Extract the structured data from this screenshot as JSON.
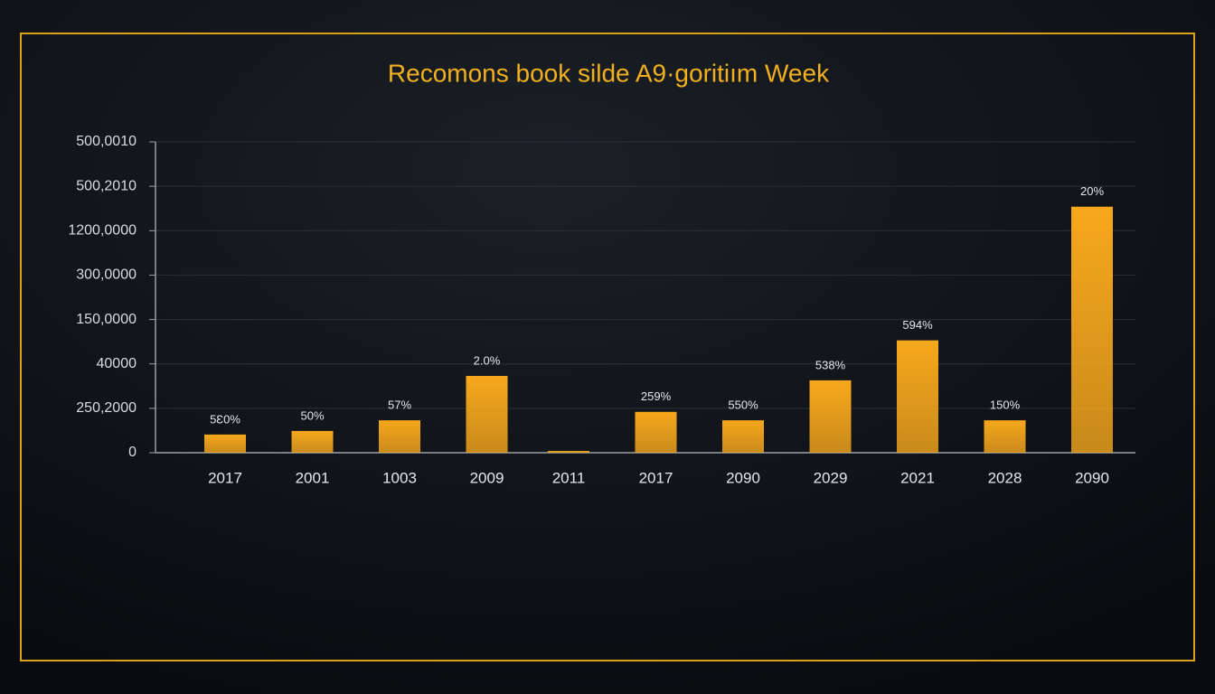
{
  "chart_data": {
    "type": "bar",
    "title": "Recomons book silde A9·goritiım Week",
    "categories": [
      "2017",
      "2001",
      "1003",
      "2009",
      "2011",
      "2017",
      "2090",
      "2029",
      "2021",
      "2028",
      "2090"
    ],
    "values": [
      0.41,
      0.49,
      0.73,
      1.73,
      0.04,
      0.92,
      0.73,
      1.63,
      2.53,
      0.73,
      5.54
    ],
    "bar_labels": [
      "5Ɛ0%",
      "50%",
      "57%",
      "2.0%",
      null,
      "259%",
      "550%",
      "538%",
      "594%",
      "150%",
      "20%"
    ],
    "color": "#f7a81c",
    "ylim": [
      0,
      7
    ],
    "yticks": [
      {
        "value": 0,
        "label": "0"
      },
      {
        "value": 1,
        "label": "250,2000"
      },
      {
        "value": 2,
        "label": "40000"
      },
      {
        "value": 3,
        "label": "150,0000"
      },
      {
        "value": 4,
        "label": "300,0000"
      },
      {
        "value": 5,
        "label": "1200,0000"
      },
      {
        "value": 6,
        "label": "500,2010"
      },
      {
        "value": 7,
        "label": "500,0010"
      }
    ],
    "grid": true
  }
}
